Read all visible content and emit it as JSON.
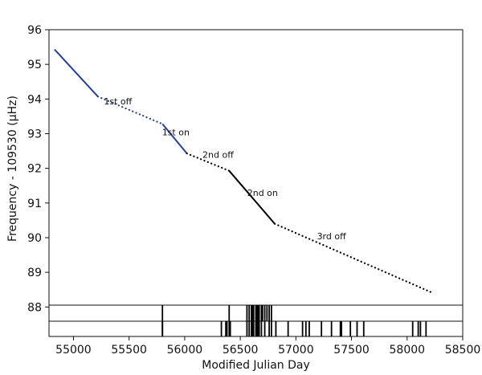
{
  "chart_data": {
    "type": "line",
    "title": "",
    "xlabel": "Modified Julian Day",
    "ylabel": "Frequency - 109530 (μHz)",
    "xlim": [
      54780,
      58500
    ],
    "ylim": [
      87.15,
      96
    ],
    "x_ticks": [
      55000,
      55500,
      56000,
      56500,
      57000,
      57500,
      58000,
      58500
    ],
    "y_ticks": [
      88,
      89,
      90,
      91,
      92,
      93,
      94,
      95,
      96
    ],
    "grid": false,
    "legend": "none",
    "colors": {
      "blue": "#1f3fb1",
      "black": "#000000",
      "axis": "#111111"
    },
    "segments": [
      {
        "label": "",
        "style": "solid",
        "color": "blue",
        "points": [
          [
            54830,
            95.43
          ],
          [
            55220,
            94.07
          ]
        ]
      },
      {
        "label": "1st off",
        "style": "dotted",
        "color": "blue",
        "points": [
          [
            55220,
            94.07
          ],
          [
            55800,
            93.28
          ]
        ]
      },
      {
        "label": "1st on",
        "style": "solid",
        "color": "blue",
        "points": [
          [
            55800,
            93.28
          ],
          [
            56020,
            92.43
          ]
        ]
      },
      {
        "label": "2nd off",
        "style": "dotted",
        "color": "black",
        "points": [
          [
            56020,
            92.43
          ],
          [
            56400,
            91.93
          ]
        ]
      },
      {
        "label": "2nd on",
        "style": "solid",
        "color": "black",
        "points": [
          [
            56400,
            91.93
          ],
          [
            56810,
            90.4
          ]
        ]
      },
      {
        "label": "3rd off",
        "style": "dotted",
        "color": "black",
        "points": [
          [
            56810,
            90.4
          ],
          [
            58220,
            88.42
          ]
        ]
      }
    ],
    "annotations": [
      {
        "text": "1st off",
        "x": 55400,
        "y": 93.85
      },
      {
        "text": "1st on",
        "x": 55920,
        "y": 92.95
      },
      {
        "text": "2nd off",
        "x": 56300,
        "y": 92.3
      },
      {
        "text": "2nd on",
        "x": 56700,
        "y": 91.2
      },
      {
        "text": "3rd off",
        "x": 57320,
        "y": 89.95
      }
    ],
    "event_markers": {
      "upper_row": [
        55800,
        56400,
        56560,
        56580,
        56600,
        56610,
        56620,
        56640,
        56650,
        56660,
        56670,
        56690,
        56700,
        56720,
        56740,
        56760,
        56780
      ],
      "lower_row": [
        55800,
        56330,
        56370,
        56380,
        56400,
        56410,
        56560,
        56580,
        56600,
        56610,
        56620,
        56640,
        56650,
        56660,
        56670,
        56690,
        56720,
        56760,
        56780,
        56820,
        56930,
        57060,
        57090,
        57120,
        57230,
        57320,
        57400,
        57410,
        57490,
        57550,
        57610,
        58050,
        58100,
        58120,
        58170
      ]
    }
  }
}
